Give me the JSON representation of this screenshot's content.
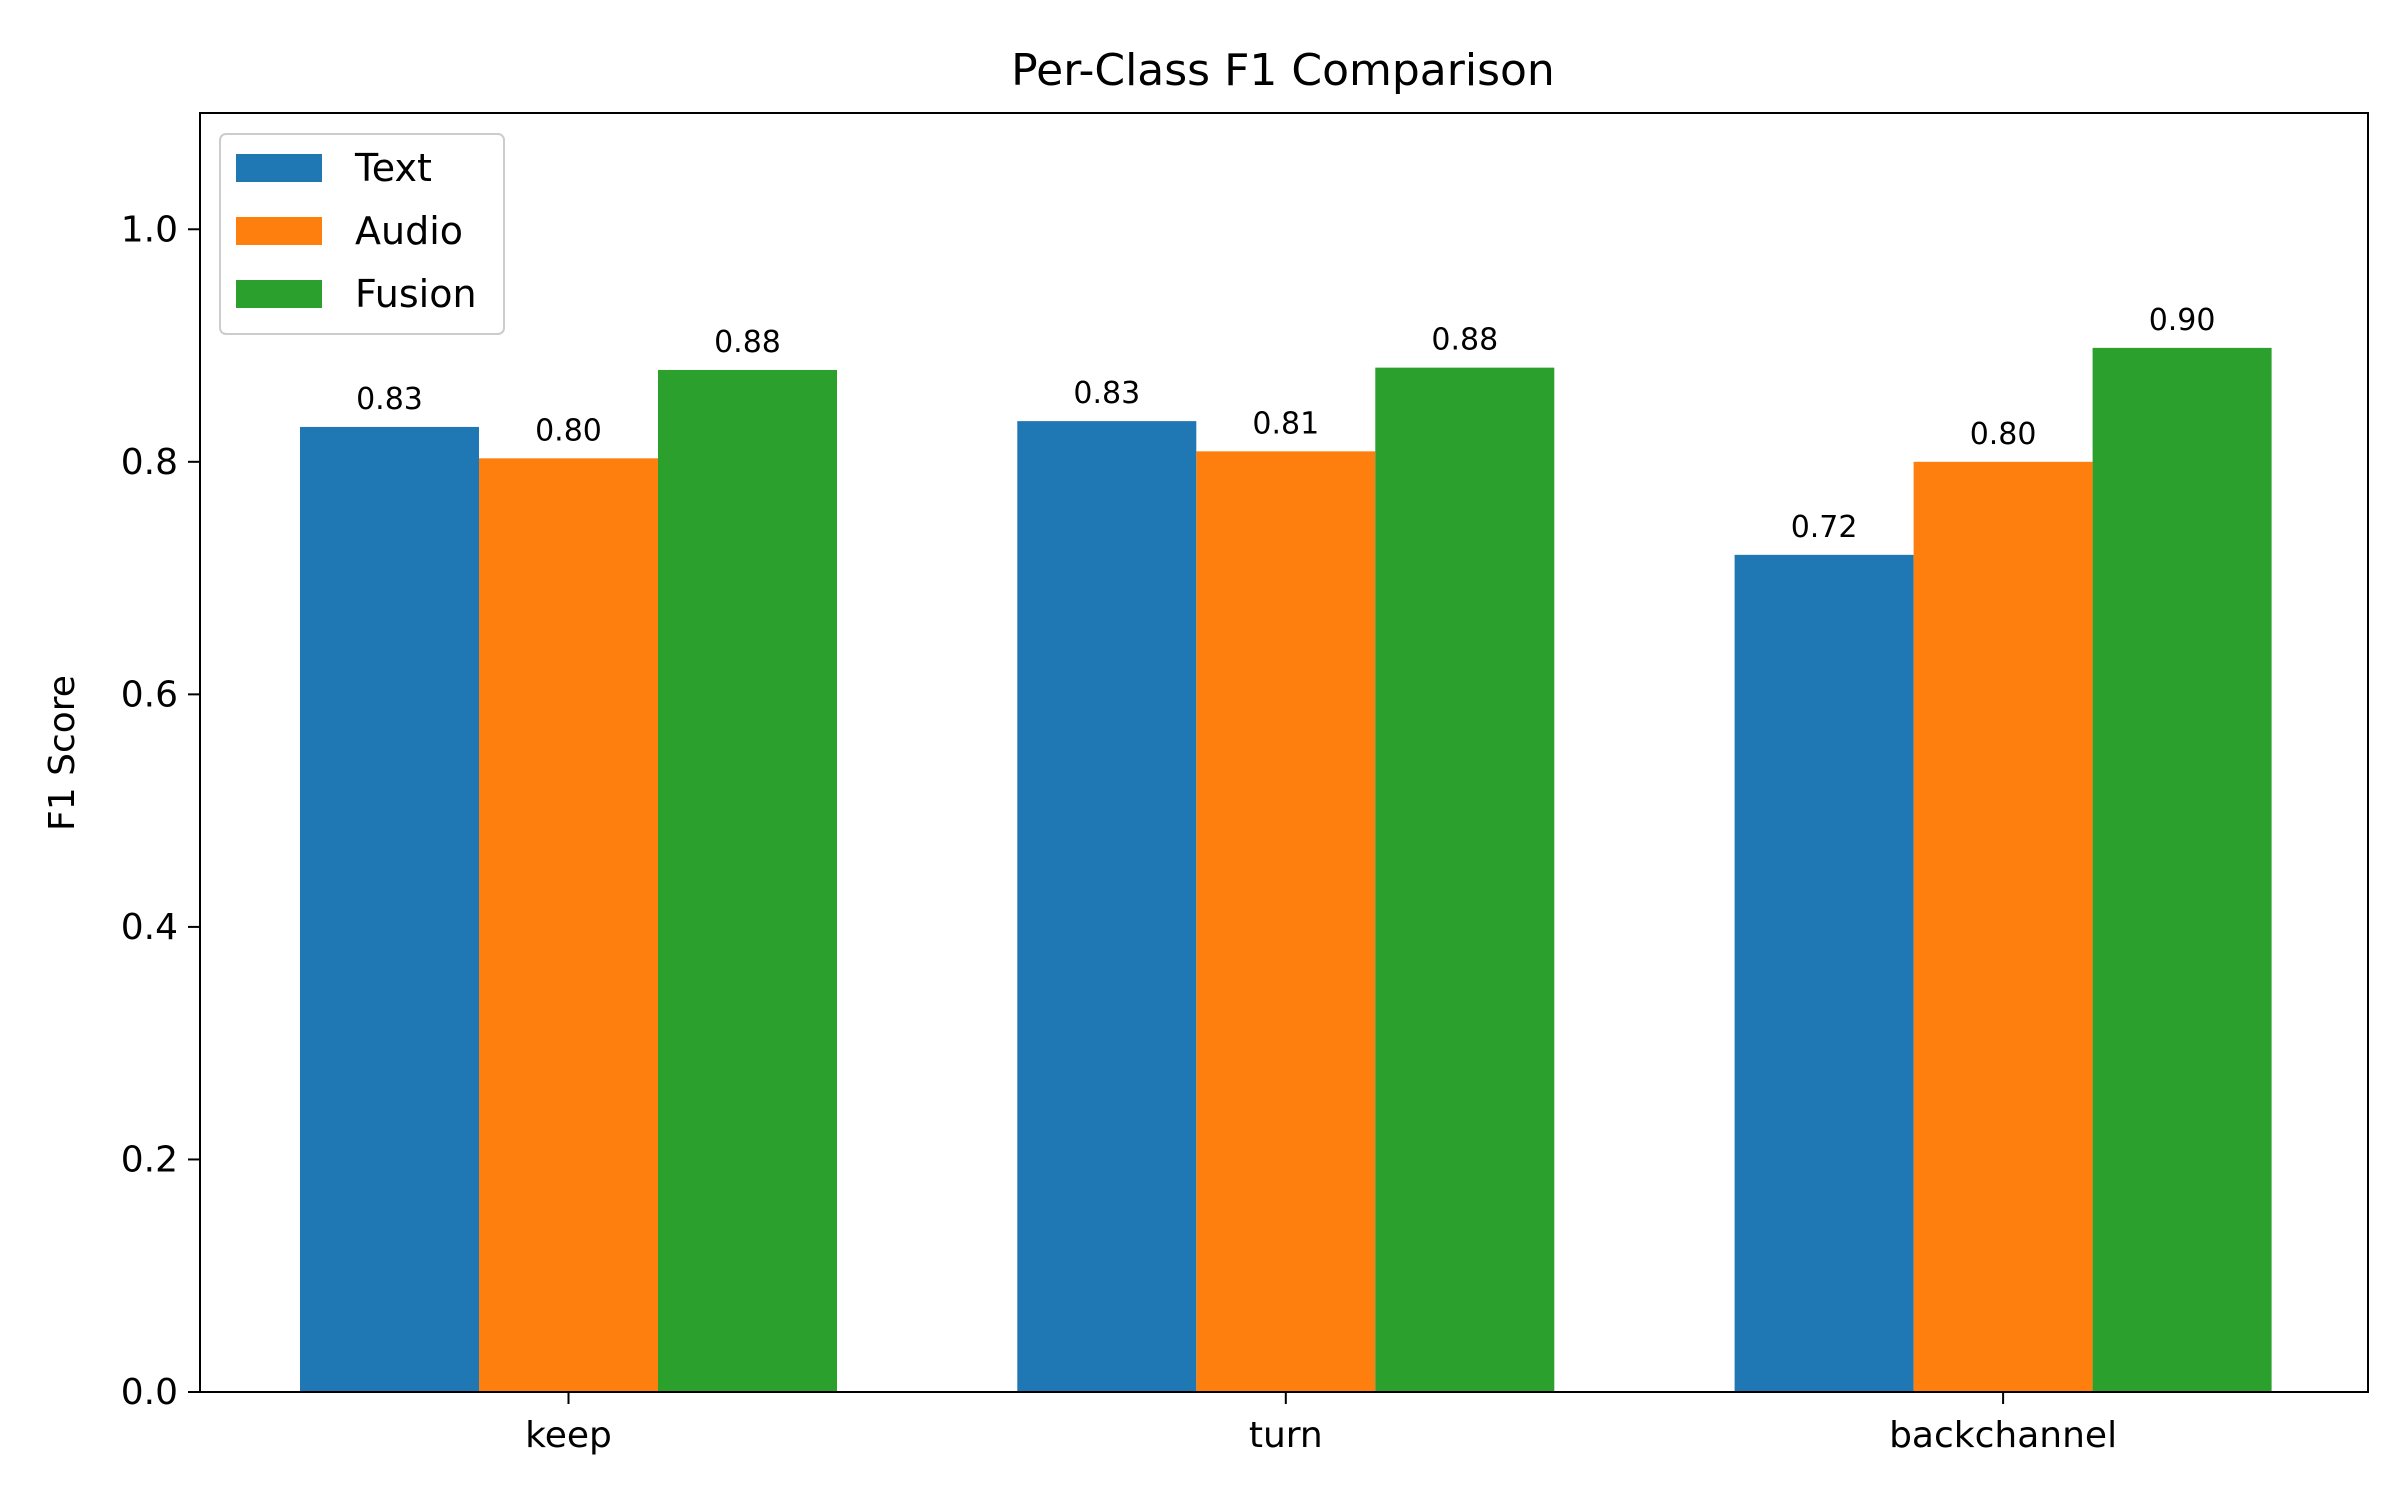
{
  "chart_data": {
    "type": "bar",
    "title": "Per-Class F1 Comparison",
    "xlabel": "",
    "ylabel": "F1 Score",
    "categories": [
      "keep",
      "turn",
      "backchannel"
    ],
    "series": [
      {
        "name": "Text",
        "values": [
          0.83,
          0.835,
          0.72
        ],
        "labels": [
          "0.83",
          "0.83",
          "0.72"
        ],
        "color": "#1f77b4"
      },
      {
        "name": "Audio",
        "values": [
          0.803,
          0.809,
          0.8
        ],
        "labels": [
          "0.80",
          "0.81",
          "0.80"
        ],
        "color": "#ff7f0e"
      },
      {
        "name": "Fusion",
        "values": [
          0.879,
          0.881,
          0.898
        ],
        "labels": [
          "0.88",
          "0.88",
          "0.90"
        ],
        "color": "#2ca02c"
      }
    ],
    "ylim": [
      0,
      1.1
    ],
    "yticks": [
      "0.0",
      "0.2",
      "0.4",
      "0.6",
      "0.8",
      "1.0"
    ],
    "grid": false,
    "legend": "top-left"
  }
}
